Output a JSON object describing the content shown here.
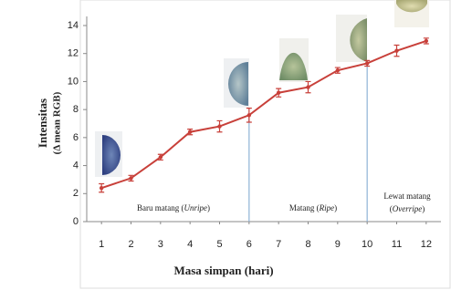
{
  "chart_data": {
    "type": "line",
    "x_label": "Masa simpan (hari)",
    "y_label": [
      "Intensitas",
      "(Δ mean RGB)"
    ],
    "x": [
      1,
      2,
      3,
      4,
      5,
      6,
      7,
      8,
      9,
      10,
      11,
      12
    ],
    "xlim": [
      0.5,
      12.5
    ],
    "xticks": [
      1,
      2,
      3,
      4,
      5,
      6,
      7,
      8,
      9,
      10,
      11,
      12
    ],
    "ylim": [
      0,
      14
    ],
    "yticks": [
      0,
      2,
      4,
      6,
      8,
      10,
      12,
      14
    ],
    "series": [
      {
        "color": "#c8403a",
        "values": [
          2.4,
          3.1,
          4.6,
          6.4,
          6.8,
          7.6,
          9.2,
          9.6,
          10.8,
          11.3,
          12.2,
          12.9
        ],
        "errors": [
          0.3,
          0.2,
          0.2,
          0.2,
          0.4,
          0.5,
          0.3,
          0.4,
          0.2,
          0.2,
          0.4,
          0.2
        ]
      }
    ],
    "dividers": [
      6,
      10
    ],
    "divider_color": "#8fb3d6",
    "annotations": [
      {
        "lines": [
          [
            "Baru matang (",
            "Unripe",
            ")"
          ]
        ]
      },
      {
        "lines": [
          [
            "Matang (",
            "Ripe",
            ")"
          ]
        ]
      },
      {
        "lines": [
          [
            "Lewat matang"
          ],
          [
            "(",
            "Overripe",
            ")"
          ]
        ]
      }
    ]
  }
}
